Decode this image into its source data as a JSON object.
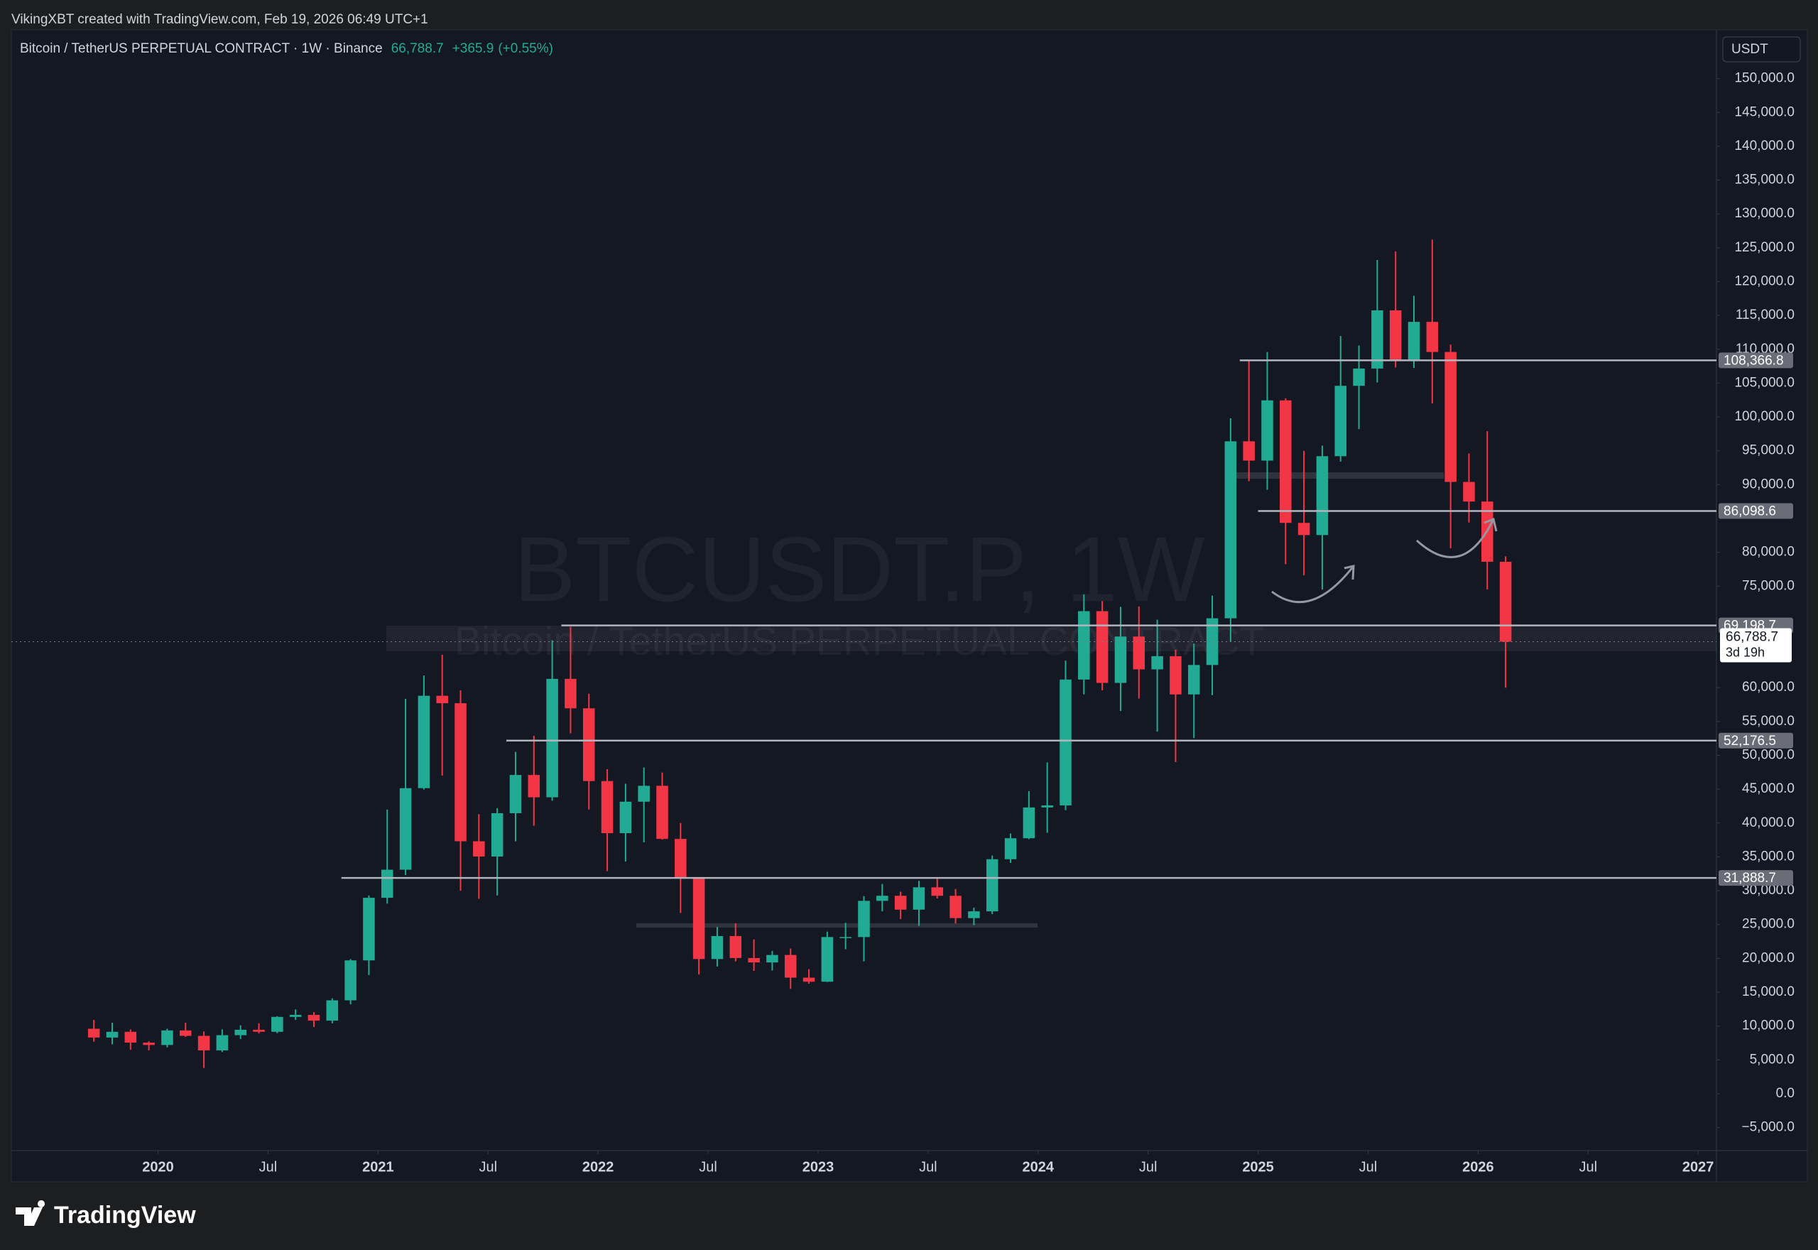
{
  "chart_data": {
    "type": "candlestick",
    "credit": "VikingXBT created with TradingView.com, Feb 19, 2026 06:49 UTC+1",
    "symbol": "Bitcoin / TetherUS PERPETUAL CONTRACT · 1W · Binance",
    "last": {
      "value": 66788.7,
      "label": "66,788.7"
    },
    "change": {
      "value": 365.9,
      "label": "+365.9"
    },
    "change_pct": {
      "value": 0.55,
      "label": "(+0.55%)"
    },
    "countdown": "3d 19h",
    "currency": "USDT",
    "watermark": "BTCUSDT.P, 1W",
    "watermark_sub": "Bitcoin / TetherUS PERPETUAL CONTRACT",
    "brand": "TradingView",
    "up_color": "#22ab94",
    "down_color": "#f23645",
    "xlim": [
      "2019-05",
      "2027-02"
    ],
    "ylim": [
      -8400,
      157200
    ],
    "grid": false,
    "xticks": [
      {
        "value": "2020-01",
        "label": "2020"
      },
      {
        "value": "2020-07",
        "label": "Jul"
      },
      {
        "value": "2021-01",
        "label": "2021"
      },
      {
        "value": "2021-07",
        "label": "Jul"
      },
      {
        "value": "2022-01",
        "label": "2022"
      },
      {
        "value": "2022-07",
        "label": "Jul"
      },
      {
        "value": "2023-01",
        "label": "2023"
      },
      {
        "value": "2023-07",
        "label": "Jul"
      },
      {
        "value": "2024-01",
        "label": "2024"
      },
      {
        "value": "2024-07",
        "label": "Jul"
      },
      {
        "value": "2025-01",
        "label": "2025"
      },
      {
        "value": "2025-07",
        "label": "Jul"
      },
      {
        "value": "2026-01",
        "label": "2026"
      },
      {
        "value": "2026-07",
        "label": "Jul"
      },
      {
        "value": "2027-01",
        "label": "2027"
      }
    ],
    "yticks": [
      {
        "value": 150000,
        "label": "150,000.0"
      },
      {
        "value": 145000,
        "label": "145,000.0"
      },
      {
        "value": 140000,
        "label": "140,000.0"
      },
      {
        "value": 135000,
        "label": "135,000.0"
      },
      {
        "value": 130000,
        "label": "130,000.0"
      },
      {
        "value": 125000,
        "label": "125,000.0"
      },
      {
        "value": 120000,
        "label": "120,000.0"
      },
      {
        "value": 115000,
        "label": "115,000.0"
      },
      {
        "value": 110000,
        "label": "110,000.0"
      },
      {
        "value": 105000,
        "label": "105,000.0"
      },
      {
        "value": 100000,
        "label": "100,000.0"
      },
      {
        "value": 95000,
        "label": "95,000.0"
      },
      {
        "value": 90000,
        "label": "90,000.0"
      },
      {
        "value": 80000,
        "label": "80,000.0"
      },
      {
        "value": 75000,
        "label": "75,000.0"
      },
      {
        "value": 60000,
        "label": "60,000.0"
      },
      {
        "value": 55000,
        "label": "55,000.0"
      },
      {
        "value": 50000,
        "label": "50,000.0"
      },
      {
        "value": 45000,
        "label": "45,000.0"
      },
      {
        "value": 40000,
        "label": "40,000.0"
      },
      {
        "value": 35000,
        "label": "35,000.0"
      },
      {
        "value": 30000,
        "label": "30,000.0"
      },
      {
        "value": 25000,
        "label": "25,000.0"
      },
      {
        "value": 20000,
        "label": "20,000.0"
      },
      {
        "value": 15000,
        "label": "15,000.0"
      },
      {
        "value": 10000,
        "label": "10,000.0"
      },
      {
        "value": 5000,
        "label": "5,000.0"
      },
      {
        "value": 0,
        "label": "0.0"
      },
      {
        "value": -5000,
        "label": "−5,000.0"
      }
    ],
    "levels": [
      {
        "value": 108366.8,
        "label": "108,366.8",
        "start": "2024-12"
      },
      {
        "value": 86098.6,
        "label": "86,098.6",
        "start": "2025-01"
      },
      {
        "value": 69198.7,
        "label": "69,198.7",
        "start": "2021-11"
      },
      {
        "value": 52176.5,
        "label": "52,176.5",
        "start": "2021-08"
      },
      {
        "value": 31888.7,
        "label": "31,888.7",
        "start": "2020-11"
      }
    ],
    "x": [
      "2019-09",
      "2019-10",
      "2019-11",
      "2019-12",
      "2020-01",
      "2020-02",
      "2020-03",
      "2020-04",
      "2020-05",
      "2020-06",
      "2020-07",
      "2020-08",
      "2020-09",
      "2020-10",
      "2020-11",
      "2020-12",
      "2021-01",
      "2021-02",
      "2021-03",
      "2021-04",
      "2021-05",
      "2021-06",
      "2021-07",
      "2021-08",
      "2021-09",
      "2021-10",
      "2021-11",
      "2021-12",
      "2022-01",
      "2022-02",
      "2022-03",
      "2022-04",
      "2022-05",
      "2022-06",
      "2022-07",
      "2022-08",
      "2022-09",
      "2022-10",
      "2022-11",
      "2022-12",
      "2023-01",
      "2023-02",
      "2023-03",
      "2023-04",
      "2023-05",
      "2023-06",
      "2023-07",
      "2023-08",
      "2023-09",
      "2023-10",
      "2023-11",
      "2023-12",
      "2024-01",
      "2024-02",
      "2024-03",
      "2024-04",
      "2024-05",
      "2024-06",
      "2024-07",
      "2024-08",
      "2024-09",
      "2024-10",
      "2024-11",
      "2024-12",
      "2025-01",
      "2025-02",
      "2025-03",
      "2025-04",
      "2025-05",
      "2025-06",
      "2025-07",
      "2025-08",
      "2025-09",
      "2025-10",
      "2025-11",
      "2025-12",
      "2026-01",
      "2026-02"
    ],
    "open": [
      9600,
      8300,
      9150,
      7550,
      7200,
      9350,
      8550,
      6400,
      8650,
      9450,
      9150,
      11350,
      11650,
      10800,
      13800,
      19700,
      28950,
      33100,
      45150,
      58800,
      57700,
      37300,
      35050,
      41450,
      47100,
      43800,
      61300,
      56950,
      46200,
      38500,
      43150,
      45500,
      37650,
      31800,
      19900,
      23300,
      20050,
      19400,
      20500,
      17150,
      16550,
      23150,
      23150,
      28500,
      29250,
      27200,
      30500,
      29250,
      25950,
      26950,
      34650,
      37750,
      42300,
      42600,
      61200,
      71300,
      60700,
      67550,
      62700,
      64650,
      59000,
      63350,
      70250,
      96400,
      93550,
      102450,
      84350,
      82550,
      94200,
      104600,
      107150,
      115750,
      108250,
      114050,
      109600,
      90400,
      87500,
      78600
    ],
    "high": [
      10900,
      10500,
      9500,
      7750,
      9600,
      10500,
      9200,
      9500,
      10100,
      10400,
      11450,
      12450,
      12050,
      14100,
      19900,
      29300,
      42000,
      58350,
      61800,
      64850,
      59600,
      41300,
      42200,
      50500,
      52900,
      67000,
      69000,
      59100,
      47950,
      45800,
      48200,
      47450,
      40000,
      31950,
      24650,
      25200,
      22800,
      21100,
      21450,
      18400,
      23950,
      25250,
      29200,
      31000,
      29850,
      31450,
      31850,
      30250,
      27500,
      35200,
      38450,
      44700,
      48950,
      64000,
      73800,
      72800,
      71950,
      72000,
      70050,
      65600,
      66500,
      73600,
      99800,
      108350,
      109600,
      102750,
      95000,
      95750,
      111950,
      110550,
      123200,
      124450,
      117900,
      126200,
      110700,
      94600,
      97900,
      79400
    ],
    "low": [
      7700,
      7300,
      6500,
      6400,
      6850,
      8400,
      3800,
      6150,
      8100,
      8900,
      8950,
      10900,
      9850,
      10400,
      13200,
      17550,
      28100,
      32300,
      44950,
      47000,
      30000,
      28800,
      29300,
      37300,
      39600,
      43300,
      53250,
      42000,
      32900,
      34300,
      37150,
      37550,
      26700,
      17600,
      18800,
      19550,
      18150,
      18200,
      15500,
      16250,
      16500,
      21350,
      19550,
      26950,
      25800,
      24800,
      28850,
      25150,
      24900,
      26550,
      34100,
      37600,
      38550,
      41900,
      59000,
      59600,
      56550,
      58400,
      53500,
      49000,
      52550,
      58900,
      66800,
      90500,
      89250,
      78250,
      76600,
      74500,
      93400,
      98200,
      105100,
      107300,
      107250,
      102000,
      80600,
      84400,
      74500,
      60000
    ],
    "close": [
      8300,
      9150,
      7550,
      7200,
      9350,
      8550,
      6400,
      8650,
      9450,
      9150,
      11350,
      11650,
      10800,
      13800,
      19700,
      28950,
      33100,
      45150,
      58800,
      57700,
      37300,
      35050,
      41450,
      47100,
      43800,
      61300,
      56950,
      46200,
      38500,
      43150,
      45500,
      37650,
      31800,
      19900,
      23300,
      20050,
      19400,
      20500,
      17150,
      16550,
      23150,
      23150,
      28500,
      29250,
      27200,
      30500,
      29250,
      25950,
      26950,
      34650,
      37750,
      42300,
      42600,
      61200,
      71300,
      60700,
      67550,
      62700,
      64650,
      59000,
      63350,
      70250,
      96400,
      93550,
      102450,
      84350,
      82550,
      94200,
      104600,
      107150,
      115750,
      108250,
      114050,
      109600,
      90400,
      87500,
      78600,
      66788.7
    ]
  }
}
